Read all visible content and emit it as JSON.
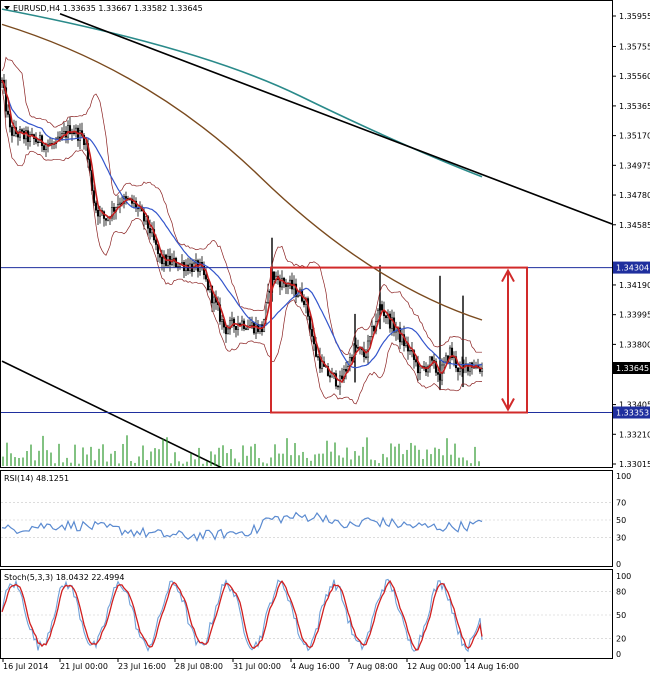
{
  "terminal": {
    "window_title": "EURUSD,H4",
    "symbol_header": "EURUSD,H4  1.33635 1.33667 1.33582 1.33645",
    "price_labels": [
      "1.35955",
      "1.35755",
      "1.35560",
      "1.35365",
      "1.35170",
      "1.34975",
      "1.34780",
      "1.34585",
      "1.34190",
      "1.33995",
      "1.33800",
      "1.33405",
      "1.33210",
      "1.33015"
    ],
    "highlight_labels": [
      {
        "text": "1.34304",
        "price": 1.34304,
        "bg": "#1f2f9e"
      },
      {
        "text": "1.33645",
        "price": 1.33645,
        "bg": "#000000"
      },
      {
        "text": "1.33353",
        "price": 1.33353,
        "bg": "#1f2f9e"
      }
    ],
    "date_labels": [
      "16 Jul 2014",
      "21 Jul 00:00",
      "23 Jul 16:00",
      "28 Jul 08:00",
      "31 Jul 00:00",
      "4 Aug 16:00",
      "7 Aug 08:00",
      "12 Aug 00:00",
      "14 Aug 16:00"
    ],
    "rsi_header": "RSI(14) 48.1251",
    "rsi_scale": [
      "100",
      "70",
      "50",
      "30",
      "0"
    ],
    "stoch_header": "Stoch(5,3,3) 18.0432 22.4994",
    "stoch_scale": [
      "100",
      "80",
      "50",
      "20",
      "0"
    ],
    "colors": {
      "candle": "#000000",
      "ema_fast": "#c41e1e",
      "ma_blue": "#3355cc",
      "ma_brown": "#7a4a1e",
      "ma_teal": "#2a8a8a",
      "bands": "#8a2020",
      "trendline": "#000000",
      "hline": "#1f2f9e",
      "rect": "#d12a2a",
      "volume": "#2e9a2e",
      "rsi_line": "#5a8ad0",
      "stoch_main": "#6fa0d8",
      "stoch_signal": "#d11f1f"
    }
  },
  "chart_data": [
    {
      "type": "line",
      "role": "price-candlesticks",
      "symbol": "EURUSD",
      "timeframe": "H4",
      "ohlc_last": {
        "open": 1.33635,
        "high": 1.33667,
        "low": 1.33582,
        "close": 1.33645
      },
      "x": [
        "16 Jul 2014",
        "21 Jul 00:00",
        "23 Jul 16:00",
        "28 Jul 08:00",
        "31 Jul 00:00",
        "4 Aug 16:00",
        "7 Aug 08:00",
        "12 Aug 00:00",
        "14 Aug 16:00"
      ],
      "close_approx": [
        1.3535,
        1.3505,
        1.347,
        1.3435,
        1.3395,
        1.3415,
        1.336,
        1.337,
        1.3362
      ],
      "ylim": [
        1.33015,
        1.35955
      ],
      "horizontal_levels": [
        1.34304,
        1.33353
      ]
    },
    {
      "type": "line",
      "role": "rsi",
      "title": "RSI(14) 48.1251",
      "value": 48.1251,
      "ylim": [
        0,
        100
      ],
      "levels": [
        70,
        50,
        30
      ]
    },
    {
      "type": "line",
      "role": "stochastic",
      "title": "Stoch(5,3,3) 18.0432 22.4994",
      "series": [
        {
          "value": 18.0432
        },
        {
          "value": 22.4994
        }
      ],
      "ylim": [
        0,
        100
      ],
      "levels": [
        80,
        50,
        20
      ]
    }
  ]
}
